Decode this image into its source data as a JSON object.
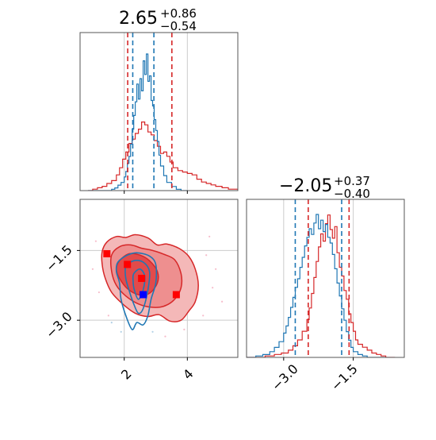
{
  "chart_data": {
    "type": "corner",
    "parameters": [
      {
        "title": {
          "median": "2.65",
          "plus": "+0.86",
          "minus": "−0.54"
        },
        "ticks": [
          "2",
          "4"
        ],
        "range": [
          0.6,
          5.6
        ]
      },
      {
        "title": {
          "median": "−2.05",
          "plus": "+0.37",
          "minus": "−0.40"
        },
        "ticks": [
          "−3.0",
          "−1.5"
        ],
        "range": [
          -3.8,
          -0.4
        ]
      }
    ],
    "colors": {
      "blue": "#1f77b4",
      "red": "#d62728",
      "red_light": "#f4b8b8",
      "red_mid": "#ee8f8f",
      "red_dark": "#e24b4b",
      "frame": "#555555",
      "grid": "#cccccc"
    },
    "grid": true,
    "quantiles": {
      "blue_p0": [
        2.27,
        2.94
      ],
      "red_p0": [
        2.11,
        3.51
      ],
      "blue_p1": [
        -2.75,
        -1.75
      ],
      "red_p1": [
        -2.47,
        -1.59
      ]
    },
    "hist_blue_p0": {
      "x": [
        0.85,
        1.0,
        1.15,
        1.3,
        1.45,
        1.6,
        1.7,
        1.8,
        1.9,
        2.0,
        2.05,
        2.1,
        2.15,
        2.2,
        2.25,
        2.3,
        2.35,
        2.4,
        2.45,
        2.5,
        2.55,
        2.6,
        2.65,
        2.7,
        2.75,
        2.8,
        2.85,
        2.9,
        2.95,
        3.0,
        3.05,
        3.1,
        3.15,
        3.25,
        3.35,
        3.5,
        3.65,
        3.8,
        4.0
      ],
      "y": [
        0,
        0,
        0,
        0,
        0,
        0.01,
        0.02,
        0.04,
        0.06,
        0.1,
        0.14,
        0.2,
        0.25,
        0.34,
        0.45,
        0.55,
        0.65,
        0.78,
        0.67,
        0.82,
        0.73,
        0.95,
        0.85,
        1.0,
        0.8,
        0.84,
        0.66,
        0.62,
        0.52,
        0.44,
        0.36,
        0.26,
        0.18,
        0.11,
        0.06,
        0.03,
        0.01,
        0,
        0
      ]
    },
    "hist_red_p0": {
      "x": [
        0.85,
        1.0,
        1.15,
        1.3,
        1.45,
        1.6,
        1.75,
        1.85,
        1.95,
        2.05,
        2.15,
        2.25,
        2.35,
        2.45,
        2.55,
        2.65,
        2.75,
        2.85,
        2.95,
        3.05,
        3.15,
        3.25,
        3.35,
        3.45,
        3.55,
        3.7,
        3.85,
        4.0,
        4.15,
        4.3,
        4.45,
        4.6,
        4.75,
        4.9,
        5.1,
        5.3,
        5.6
      ],
      "y": [
        0,
        0.01,
        0.02,
        0.03,
        0.05,
        0.07,
        0.11,
        0.16,
        0.22,
        0.27,
        0.33,
        0.36,
        0.4,
        0.43,
        0.48,
        0.46,
        0.41,
        0.39,
        0.35,
        0.31,
        0.26,
        0.27,
        0.24,
        0.2,
        0.16,
        0.14,
        0.13,
        0.12,
        0.11,
        0.08,
        0.06,
        0.05,
        0.04,
        0.03,
        0.02,
        0.01,
        0
      ]
    },
    "hist_blue_p1": {
      "x": [
        -3.8,
        -3.6,
        -3.45,
        -3.3,
        -3.2,
        -3.1,
        -3.0,
        -2.95,
        -2.9,
        -2.85,
        -2.8,
        -2.75,
        -2.7,
        -2.65,
        -2.6,
        -2.55,
        -2.5,
        -2.45,
        -2.4,
        -2.35,
        -2.3,
        -2.25,
        -2.2,
        -2.15,
        -2.1,
        -2.05,
        -2.0,
        -1.95,
        -1.9,
        -1.85,
        -1.8,
        -1.75,
        -1.7,
        -1.65,
        -1.6,
        -1.55,
        -1.5,
        -1.4,
        -1.3,
        -1.2,
        -1.0,
        -0.8
      ],
      "y": [
        0,
        0.01,
        0.02,
        0.04,
        0.07,
        0.11,
        0.17,
        0.22,
        0.28,
        0.35,
        0.42,
        0.49,
        0.55,
        0.63,
        0.7,
        0.78,
        0.84,
        0.9,
        0.86,
        0.94,
        1.0,
        0.9,
        0.96,
        0.88,
        0.93,
        0.84,
        0.8,
        0.72,
        0.62,
        0.52,
        0.43,
        0.34,
        0.26,
        0.18,
        0.12,
        0.07,
        0.04,
        0.02,
        0.01,
        0,
        0,
        0
      ]
    },
    "hist_red_p1": {
      "x": [
        -3.8,
        -3.6,
        -3.4,
        -3.2,
        -3.05,
        -2.9,
        -2.8,
        -2.7,
        -2.6,
        -2.5,
        -2.45,
        -2.4,
        -2.35,
        -2.3,
        -2.25,
        -2.2,
        -2.15,
        -2.1,
        -2.05,
        -2.0,
        -1.95,
        -1.9,
        -1.85,
        -1.8,
        -1.75,
        -1.7,
        -1.65,
        -1.6,
        -1.55,
        -1.5,
        -1.45,
        -1.4,
        -1.3,
        -1.2,
        -1.1,
        -1.0,
        -0.9,
        -0.8,
        -0.6
      ],
      "y": [
        0,
        0,
        0.01,
        0.02,
        0.03,
        0.05,
        0.08,
        0.12,
        0.18,
        0.26,
        0.34,
        0.44,
        0.55,
        0.66,
        0.76,
        0.85,
        0.8,
        0.92,
        0.98,
        0.88,
        0.82,
        0.9,
        0.72,
        0.62,
        0.56,
        0.46,
        0.4,
        0.3,
        0.24,
        0.18,
        0.12,
        0.09,
        0.07,
        0.05,
        0.03,
        0.02,
        0.01,
        0,
        0
      ]
    },
    "contours_red": [
      {
        "level": "outer",
        "points": [
          [
            1.3,
            -1.52
          ],
          [
            1.45,
            -1.32
          ],
          [
            1.75,
            -1.2
          ],
          [
            2.05,
            -1.22
          ],
          [
            2.35,
            -1.16
          ],
          [
            2.75,
            -1.23
          ],
          [
            3.05,
            -1.38
          ],
          [
            3.35,
            -1.36
          ],
          [
            3.75,
            -1.46
          ],
          [
            4.05,
            -1.63
          ],
          [
            4.25,
            -1.9
          ],
          [
            4.35,
            -2.25
          ],
          [
            4.25,
            -2.6
          ],
          [
            4.05,
            -2.8
          ],
          [
            3.8,
            -3.0
          ],
          [
            3.45,
            -3.02
          ],
          [
            3.1,
            -2.88
          ],
          [
            2.75,
            -2.92
          ],
          [
            2.35,
            -2.85
          ],
          [
            1.95,
            -2.65
          ],
          [
            1.6,
            -2.4
          ],
          [
            1.4,
            -2.1
          ],
          [
            1.3,
            -1.8
          ]
        ]
      },
      {
        "level": "mid",
        "points": [
          [
            1.6,
            -1.6
          ],
          [
            1.85,
            -1.42
          ],
          [
            2.2,
            -1.38
          ],
          [
            2.55,
            -1.45
          ],
          [
            2.9,
            -1.5
          ],
          [
            3.25,
            -1.58
          ],
          [
            3.6,
            -1.7
          ],
          [
            3.8,
            -2.0
          ],
          [
            3.8,
            -2.3
          ],
          [
            3.6,
            -2.55
          ],
          [
            3.25,
            -2.7
          ],
          [
            2.85,
            -2.72
          ],
          [
            2.45,
            -2.65
          ],
          [
            2.05,
            -2.48
          ],
          [
            1.75,
            -2.25
          ],
          [
            1.6,
            -1.95
          ]
        ]
      },
      {
        "level": "inner",
        "points": [
          [
            1.85,
            -1.72
          ],
          [
            2.15,
            -1.57
          ],
          [
            2.5,
            -1.6
          ],
          [
            2.8,
            -1.72
          ],
          [
            3.05,
            -1.95
          ],
          [
            3.05,
            -2.2
          ],
          [
            2.8,
            -2.42
          ],
          [
            2.45,
            -2.45
          ],
          [
            2.1,
            -2.32
          ],
          [
            1.85,
            -2.1
          ],
          [
            1.75,
            -1.9
          ]
        ]
      }
    ],
    "contours_blue": [
      {
        "points": [
          [
            1.8,
            -1.75
          ],
          [
            2.1,
            -1.6
          ],
          [
            2.4,
            -1.55
          ],
          [
            2.8,
            -1.62
          ],
          [
            3.0,
            -1.8
          ],
          [
            3.0,
            -2.2
          ],
          [
            2.85,
            -2.55
          ],
          [
            2.75,
            -2.9
          ],
          [
            2.6,
            -3.1
          ],
          [
            2.4,
            -3.05
          ],
          [
            2.25,
            -3.2
          ],
          [
            2.05,
            -2.9
          ],
          [
            1.9,
            -2.55
          ],
          [
            1.85,
            -2.2
          ],
          [
            1.75,
            -1.95
          ]
        ]
      },
      {
        "points": [
          [
            2.05,
            -1.85
          ],
          [
            2.3,
            -1.72
          ],
          [
            2.6,
            -1.75
          ],
          [
            2.8,
            -1.95
          ],
          [
            2.75,
            -2.35
          ],
          [
            2.6,
            -2.75
          ],
          [
            2.45,
            -2.85
          ],
          [
            2.3,
            -2.65
          ],
          [
            2.15,
            -2.35
          ],
          [
            2.05,
            -2.1
          ]
        ]
      },
      {
        "points": [
          [
            2.3,
            -2.0
          ],
          [
            2.5,
            -1.9
          ],
          [
            2.65,
            -2.05
          ],
          [
            2.6,
            -2.35
          ],
          [
            2.45,
            -2.55
          ],
          [
            2.32,
            -2.35
          ],
          [
            2.28,
            -2.15
          ]
        ]
      }
    ],
    "markers_red": [
      [
        1.45,
        -1.57
      ],
      [
        2.1,
        -1.8
      ],
      [
        2.55,
        -2.1
      ],
      [
        3.65,
        -2.45
      ]
    ],
    "markers_blue": [
      [
        2.6,
        -2.45
      ]
    ],
    "scatter_red": [
      [
        1.1,
        -1.3
      ],
      [
        1.2,
        -2.4
      ],
      [
        4.6,
        -1.6
      ],
      [
        4.8,
        -2.3
      ],
      [
        4.5,
        -2.9
      ],
      [
        3.9,
        -3.2
      ],
      [
        3.3,
        -3.35
      ],
      [
        1.5,
        -2.9
      ],
      [
        4.9,
        -1.9
      ],
      [
        5.1,
        -2.6
      ],
      [
        4.7,
        -1.2
      ],
      [
        1.0,
        -1.9
      ]
    ],
    "scatter_blue": [
      [
        1.6,
        -3.05
      ],
      [
        1.9,
        -3.25
      ],
      [
        2.9,
        -3.25
      ],
      [
        3.2,
        -2.6
      ],
      [
        1.55,
        -2.2
      ]
    ]
  }
}
